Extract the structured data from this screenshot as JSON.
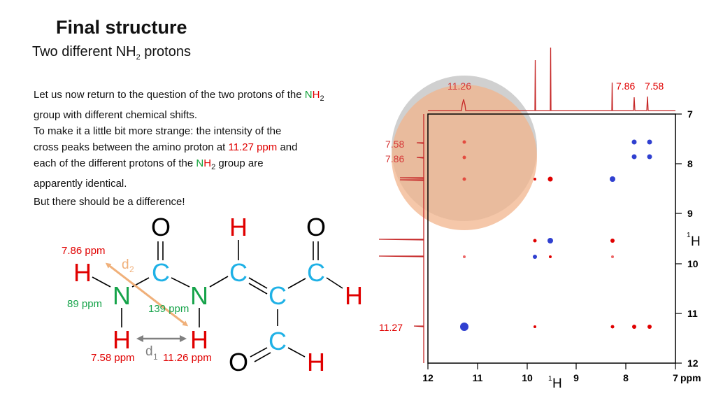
{
  "slide": {
    "title": "Final structure",
    "subtitle_pre": "Two different NH",
    "subtitle_sub": "2",
    "subtitle_post": " protons"
  },
  "text": {
    "p1_a": "Let us now return to the question of the two protons of the ",
    "p1_n": "N",
    "p1_h": "H",
    "p1_sub": "2",
    "p1_b": "group with different chemical shifts.",
    "p2_a": "To make it a little bit more strange: the intensity of the",
    "p2_b": "cross peaks between the amino proton at ",
    "p2_ppm": "11.27 ppm",
    "p2_c": " and",
    "p2_d": "each of the different protons of the ",
    "p2_n": "N",
    "p2_h": "H",
    "p2_sub": "2",
    "p2_e": " group are",
    "p2_f": "apparently identical.",
    "p3": "But there should be a difference!"
  },
  "molecule": {
    "atoms": {
      "o1": "O",
      "h_top": "H",
      "o2": "O",
      "h_nh_top": "H",
      "c1": "C",
      "c2": "C",
      "c3": "C",
      "n1": "N",
      "n2": "N",
      "c4": "C",
      "h_cho": "H",
      "h_nh_bot": "H",
      "h_amide": "H",
      "c5": "C",
      "o3": "O",
      "h_bot": "H"
    },
    "labels": {
      "ppm_786": "7.86 ppm",
      "ppm_89": "89 ppm",
      "ppm_139": "139 ppm",
      "ppm_758": "7.58 ppm",
      "ppm_1126": "11.26 ppm",
      "d2": "d",
      "d2_sub": "2",
      "d1": "d",
      "d1_sub": "1"
    },
    "colors": {
      "carbon": "#1fb1e6",
      "nitrogen": "#16a34a",
      "hydrogen": "#e00000",
      "oxygen": "#000000",
      "d2_arrow": "#f0b07a",
      "d1_arrow": "#808080"
    }
  },
  "spectrum": {
    "top_labels": {
      "l1126": "11.26",
      "l786": "7.86",
      "l758": "7.58"
    },
    "left_labels": {
      "l758": "7.58",
      "l786": "7.86",
      "l1127": "11.27"
    },
    "x_ticks": [
      "12",
      "11",
      "10",
      "9",
      "8",
      "7"
    ],
    "x_unit": "ppm",
    "x_nucleus_sup": "1",
    "x_nucleus": "H",
    "y_ticks": [
      "7",
      "8",
      "9",
      "10",
      "11",
      "12"
    ],
    "y_nucleus_sup": "1",
    "y_nucleus": "H",
    "colors": {
      "positive": "#e00000",
      "negative": "#3040d0",
      "trace": "#c62828",
      "highlight_grey": "#c8c8c8",
      "highlight_orange": "#f2b48c"
    }
  }
}
